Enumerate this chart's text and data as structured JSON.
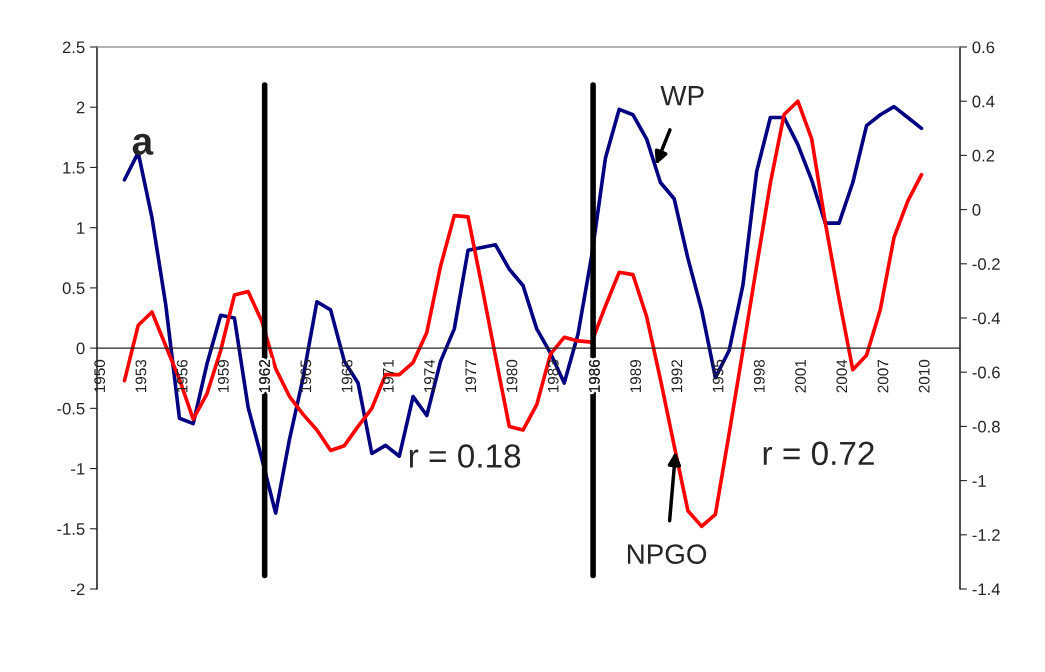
{
  "chart_data": {
    "type": "line",
    "x": [
      1952,
      1953,
      1954,
      1955,
      1956,
      1957,
      1958,
      1959,
      1960,
      1961,
      1962,
      1963,
      1964,
      1965,
      1966,
      1967,
      1968,
      1969,
      1970,
      1971,
      1972,
      1973,
      1974,
      1975,
      1976,
      1977,
      1978,
      1979,
      1980,
      1981,
      1982,
      1983,
      1984,
      1985,
      1986,
      1987,
      1988,
      1989,
      1990,
      1991,
      1992,
      1993,
      1994,
      1995,
      1996,
      1997,
      1998,
      1999,
      2000,
      2001,
      2002,
      2003,
      2004,
      2005,
      2006,
      2007,
      2008,
      2009,
      2010
    ],
    "series": [
      {
        "color": "#ff0000",
        "values": [
          -0.27,
          0.19,
          0.3,
          0.02,
          -0.26,
          -0.59,
          -0.38,
          -0.02,
          0.44,
          0.47,
          0.22,
          -0.17,
          -0.4,
          -0.55,
          -0.68,
          -0.85,
          -0.81,
          -0.65,
          -0.5,
          -0.22,
          -0.22,
          -0.12,
          0.13,
          0.68,
          1.1,
          1.09,
          0.52,
          -0.07,
          -0.65,
          -0.68,
          -0.47,
          -0.05,
          0.09,
          0.06,
          0.05,
          0.35,
          0.63,
          0.61,
          0.26,
          -0.26,
          -0.81,
          -1.35,
          -1.48,
          -1.38,
          -0.71,
          -0.02,
          0.68,
          1.37,
          1.94,
          2.05,
          1.74,
          1.04,
          0.41,
          -0.18,
          -0.06,
          0.32,
          0.92,
          1.22,
          1.44
        ]
      },
      {
        "color": "#000080",
        "axis": "y2",
        "values": [
          0.11,
          0.21,
          -0.03,
          -0.35,
          -0.77,
          -0.79,
          -0.57,
          -0.39,
          -0.4,
          -0.73,
          -0.92,
          -1.12,
          -0.85,
          -0.62,
          -0.34,
          -0.37,
          -0.56,
          -0.64,
          -0.9,
          -0.87,
          -0.91,
          -0.69,
          -0.76,
          -0.56,
          -0.44,
          -0.15,
          -0.14,
          -0.13,
          -0.22,
          -0.28,
          -0.44,
          -0.53,
          -0.64,
          -0.46,
          -0.17,
          0.19,
          0.37,
          0.35,
          0.26,
          0.1,
          0.04,
          -0.18,
          -0.37,
          -0.62,
          -0.52,
          -0.28,
          0.14,
          0.34,
          0.34,
          0.24,
          0.11,
          -0.05,
          -0.05,
          0.1,
          0.31,
          0.35,
          0.38,
          0.34,
          0.3
        ]
      }
    ],
    "xlim": [
      1950,
      2012.8
    ],
    "xticks": [
      1950,
      1953,
      1956,
      1959,
      1962,
      1965,
      1968,
      1971,
      1974,
      1977,
      1980,
      1983,
      1986,
      1989,
      1992,
      1995,
      1998,
      2001,
      2004,
      2007,
      2010
    ],
    "ylim": [
      -2,
      2.5
    ],
    "yticks": [
      -2,
      -1.5,
      -1,
      -0.5,
      0,
      0.5,
      1,
      1.5,
      2,
      2.5
    ],
    "y2lim": [
      -1.4,
      0.6
    ],
    "y2ticks": [
      -1.4,
      -1.2,
      -1,
      -0.8,
      -0.6,
      -0.4,
      -0.2,
      0,
      0.2,
      0.4,
      0.6
    ],
    "ref_lines": [
      {
        "axis": "x",
        "value": 1962.2,
        "color": "#000000"
      },
      {
        "axis": "x",
        "value": 1986.1,
        "color": "#000000"
      }
    ],
    "annotations": [
      "a",
      "r = 0.18",
      "r = 0.72",
      {
        "text": "WP",
        "x": 1990.6,
        "y": 1.5
      },
      {
        "text": "NPGO",
        "x": 1992.1,
        "y": -0.86
      }
    ],
    "grid": false,
    "legend": false,
    "marker": "none",
    "line_style": "solid"
  }
}
